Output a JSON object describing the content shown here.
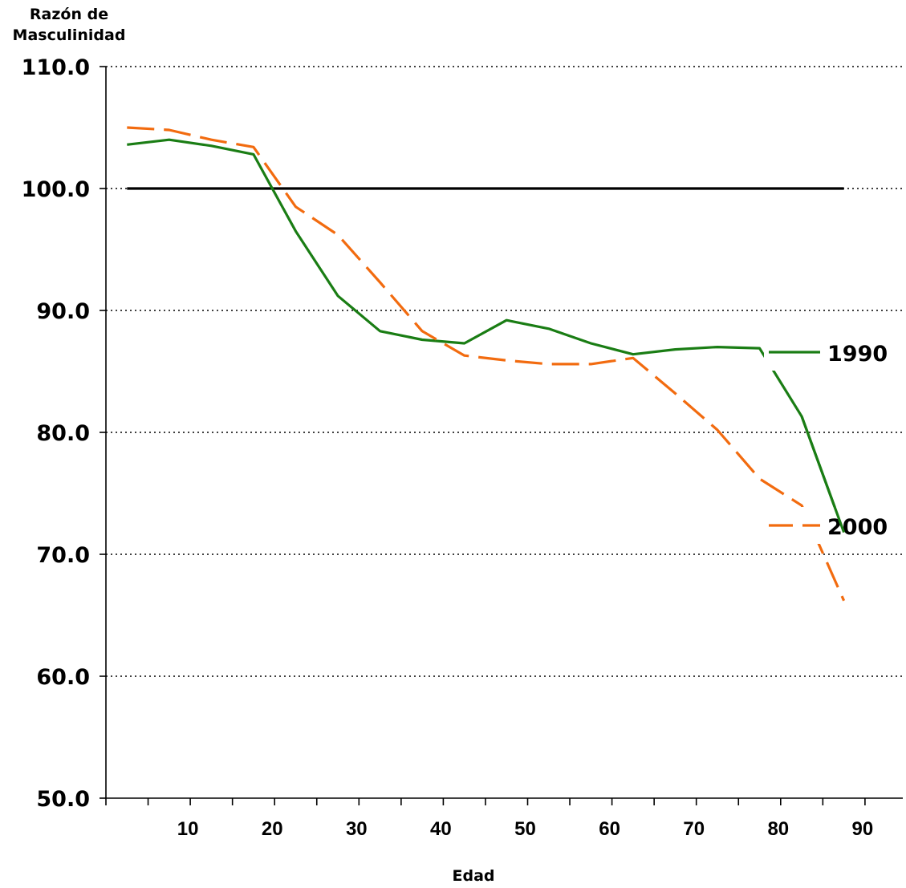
{
  "chart_data": {
    "type": "line",
    "ylabel": [
      "Razón de",
      "Masculinidad"
    ],
    "xlabel": "Edad",
    "ylim": [
      50,
      110
    ],
    "yticks": [
      50,
      60,
      70,
      80,
      90,
      100,
      110
    ],
    "ytick_labels": [
      "50.0",
      "60.0",
      "70.0",
      "80.0",
      "90.0",
      "100.0",
      "110.0"
    ],
    "xlim": [
      0,
      92.5
    ],
    "xticks": [
      10,
      20,
      30,
      40,
      50,
      60,
      70,
      80,
      90
    ],
    "xtick_labels": [
      "10",
      "20",
      "30",
      "40",
      "50",
      "60",
      "70",
      "80",
      "90"
    ],
    "grid": "horizontal dotted",
    "x": [
      2.5,
      7.5,
      12.5,
      17.5,
      22.5,
      27.5,
      32.5,
      37.5,
      42.5,
      47.5,
      52.5,
      57.5,
      62.5,
      67.5,
      72.5,
      77.5,
      82.5,
      87.5
    ],
    "series": [
      {
        "name": "1990",
        "color": "#1a7d14",
        "style": "solid",
        "values": [
          103.6,
          104.0,
          103.5,
          102.8,
          96.5,
          91.2,
          88.3,
          87.6,
          87.3,
          89.2,
          88.5,
          87.3,
          86.4,
          86.8,
          87.0,
          86.9,
          81.3,
          71.8
        ]
      },
      {
        "name": "2000",
        "color": "#f26b0f",
        "style": "dashed",
        "values": [
          105.0,
          104.8,
          104.0,
          103.4,
          98.5,
          96.2,
          92.3,
          88.3,
          86.3,
          85.9,
          85.6,
          85.6,
          86.1,
          83.2,
          80.2,
          76.2,
          74.0,
          66.2
        ]
      },
      {
        "name": "",
        "color": "#000000",
        "style": "solid",
        "values": [
          100,
          100,
          100,
          100,
          100,
          100,
          100,
          100,
          100,
          100,
          100,
          100,
          100,
          100,
          100,
          100,
          100,
          100
        ]
      }
    ],
    "legend": "right, inline labels"
  }
}
